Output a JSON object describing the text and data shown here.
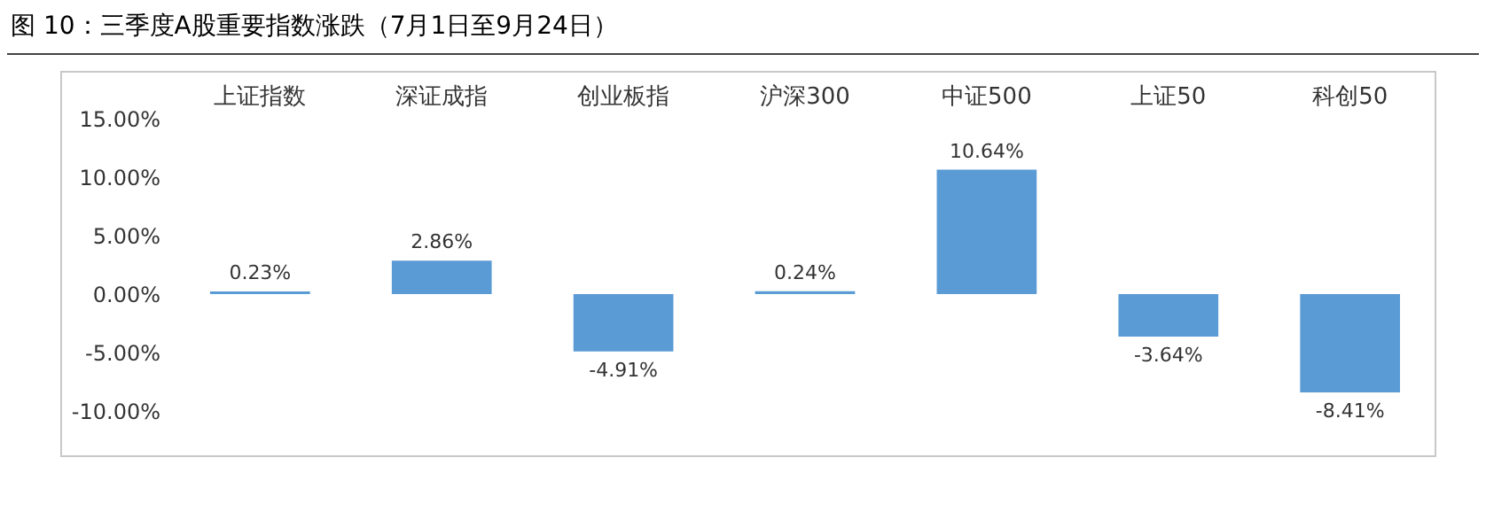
{
  "chart_data": {
    "type": "bar",
    "title": "图 10：三季度A股重要指数涨跌（7月1日至9月24日）",
    "categories": [
      "上证指数",
      "深证成指",
      "创业板指",
      "沪深300",
      "中证500",
      "上证50",
      "科创50"
    ],
    "values": [
      0.23,
      2.86,
      -4.91,
      0.24,
      10.64,
      -3.64,
      -8.41
    ],
    "value_labels": [
      "0.23%",
      "2.86%",
      "-4.91%",
      "0.24%",
      "10.64%",
      "-3.64%",
      "-8.41%"
    ],
    "color": "#5b9bd5",
    "ylim": [
      -10,
      15
    ],
    "yticks": [
      {
        "value": -10,
        "label": "-10.00%"
      },
      {
        "value": -5,
        "label": "-5.00%"
      },
      {
        "value": 0,
        "label": "0.00%"
      },
      {
        "value": 5,
        "label": "5.00%"
      },
      {
        "value": 10,
        "label": "10.00%"
      },
      {
        "value": 15,
        "label": "15.00%"
      }
    ]
  }
}
